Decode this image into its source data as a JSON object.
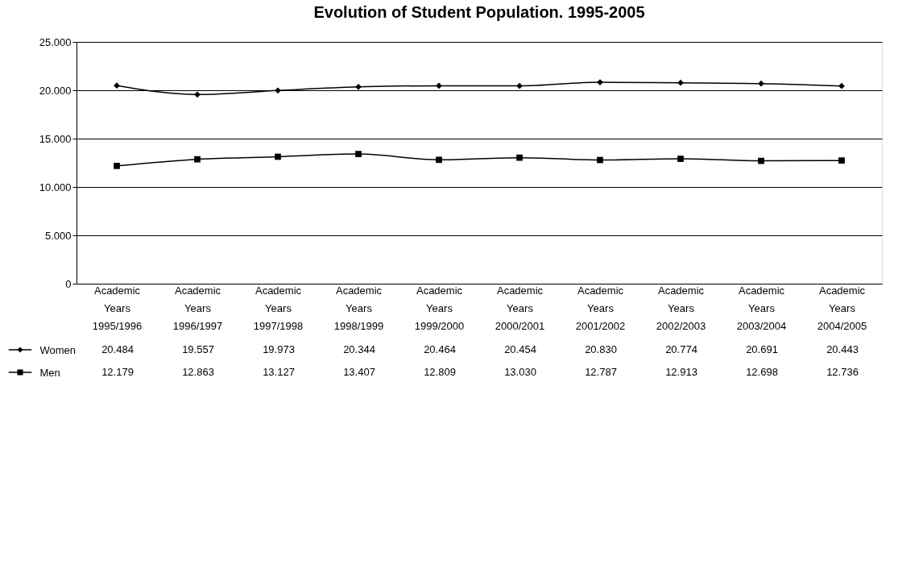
{
  "chart_data": {
    "type": "line",
    "title": "Evolution of Student Population. 1995-2005",
    "categories": [
      "Academic Years 1995/1996",
      "Academic Years 1996/1997",
      "Academic Years 1997/1998",
      "Academic Years 1998/1999",
      "Academic Years 1999/2000",
      "Academic Years 2000/2001",
      "Academic Years 2001/2002",
      "Academic Years 2002/2003",
      "Academic Years 2003/2004",
      "Academic Years 2004/2005"
    ],
    "series": [
      {
        "name": "Women",
        "color": "#000000",
        "marker": "diamond",
        "values": [
          20484,
          19557,
          19973,
          20344,
          20464,
          20454,
          20830,
          20774,
          20691,
          20443
        ],
        "value_labels": [
          "20.484",
          "19.557",
          "19.973",
          "20.344",
          "20.464",
          "20.454",
          "20.830",
          "20.774",
          "20.691",
          "20.443"
        ]
      },
      {
        "name": "Men",
        "color": "#000000",
        "marker": "square",
        "values": [
          12179,
          12863,
          13127,
          13407,
          12809,
          13030,
          12787,
          12913,
          12698,
          12736
        ],
        "value_labels": [
          "12.179",
          "12.863",
          "13.127",
          "13.407",
          "12.809",
          "13.030",
          "12.787",
          "12.913",
          "12.698",
          "12.736"
        ]
      }
    ],
    "ylim": [
      0,
      25000
    ],
    "yticks": [
      {
        "value": 0,
        "label": "0"
      },
      {
        "value": 5000,
        "label": "5.000"
      },
      {
        "value": 10000,
        "label": "10.000"
      },
      {
        "value": 15000,
        "label": "15.000"
      },
      {
        "value": 20000,
        "label": "20.000"
      },
      {
        "value": 25000,
        "label": "25.000"
      }
    ],
    "grid": "y",
    "legend": "bottom left",
    "line_style": "solid"
  }
}
